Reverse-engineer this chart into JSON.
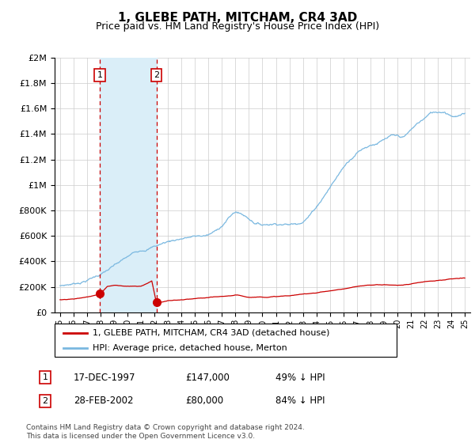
{
  "title": "1, GLEBE PATH, MITCHAM, CR4 3AD",
  "subtitle": "Price paid vs. HM Land Registry's House Price Index (HPI)",
  "hpi_color": "#7ab8e0",
  "price_color": "#cc0000",
  "shade_color": "#daeef8",
  "vline_color": "#cc0000",
  "legend_entries": [
    "1, GLEBE PATH, MITCHAM, CR4 3AD (detached house)",
    "HPI: Average price, detached house, Merton"
  ],
  "sales": [
    {
      "label": "1",
      "date": "17-DEC-1997",
      "year": 1997.95,
      "price": 147000,
      "pct": "49% ↓ HPI"
    },
    {
      "label": "2",
      "date": "28-FEB-2002",
      "year": 2002.15,
      "price": 80000,
      "pct": "84% ↓ HPI"
    }
  ],
  "footnote": "Contains HM Land Registry data © Crown copyright and database right 2024.\nThis data is licensed under the Open Government Licence v3.0.",
  "ylim": [
    0,
    2000000
  ],
  "yticks": [
    0,
    200000,
    400000,
    600000,
    800000,
    1000000,
    1200000,
    1400000,
    1600000,
    1800000,
    2000000
  ],
  "xlim_start": 1994.6,
  "xlim_end": 2025.4,
  "hpi_key_years": [
    1995.0,
    1995.5,
    1996.0,
    1996.5,
    1997.0,
    1997.5,
    1998.0,
    1998.5,
    1999.0,
    1999.5,
    2000.0,
    2000.5,
    2001.0,
    2001.5,
    2002.0,
    2002.5,
    2003.0,
    2003.5,
    2004.0,
    2004.5,
    2005.0,
    2005.5,
    2006.0,
    2006.5,
    2007.0,
    2007.5,
    2008.0,
    2008.5,
    2009.0,
    2009.5,
    2010.0,
    2010.5,
    2011.0,
    2011.5,
    2012.0,
    2012.5,
    2013.0,
    2013.5,
    2014.0,
    2014.5,
    2015.0,
    2015.5,
    2016.0,
    2016.5,
    2017.0,
    2017.5,
    2018.0,
    2018.5,
    2019.0,
    2019.5,
    2020.0,
    2020.5,
    2021.0,
    2021.5,
    2022.0,
    2022.5,
    2023.0,
    2023.5,
    2024.0,
    2024.5,
    2025.0
  ],
  "hpi_key_vals": [
    205000,
    215000,
    225000,
    240000,
    260000,
    285000,
    310000,
    340000,
    370000,
    400000,
    430000,
    460000,
    490000,
    510000,
    530000,
    550000,
    570000,
    585000,
    600000,
    610000,
    615000,
    618000,
    625000,
    650000,
    700000,
    760000,
    810000,
    790000,
    760000,
    730000,
    720000,
    730000,
    740000,
    745000,
    740000,
    750000,
    780000,
    830000,
    900000,
    980000,
    1060000,
    1140000,
    1220000,
    1290000,
    1350000,
    1390000,
    1420000,
    1440000,
    1460000,
    1480000,
    1470000,
    1460000,
    1510000,
    1560000,
    1600000,
    1640000,
    1650000,
    1660000,
    1640000,
    1640000,
    1650000
  ],
  "price_key_years": [
    1995.0,
    1996.0,
    1997.0,
    1997.95,
    1998.5,
    1999.0,
    2000.0,
    2001.0,
    2001.8,
    2002.15,
    2003.0,
    2004.0,
    2005.0,
    2006.0,
    2007.0,
    2008.0,
    2009.0,
    2010.0,
    2011.0,
    2012.0,
    2013.0,
    2014.0,
    2015.0,
    2016.0,
    2017.0,
    2018.0,
    2019.0,
    2020.0,
    2021.0,
    2022.0,
    2023.0,
    2024.0,
    2025.0
  ],
  "price_key_vals": [
    100000,
    110000,
    125000,
    147000,
    210000,
    220000,
    215000,
    210000,
    255000,
    80000,
    100000,
    105000,
    110000,
    115000,
    120000,
    130000,
    115000,
    120000,
    125000,
    130000,
    140000,
    155000,
    170000,
    185000,
    200000,
    210000,
    215000,
    210000,
    220000,
    240000,
    255000,
    265000,
    268000
  ]
}
